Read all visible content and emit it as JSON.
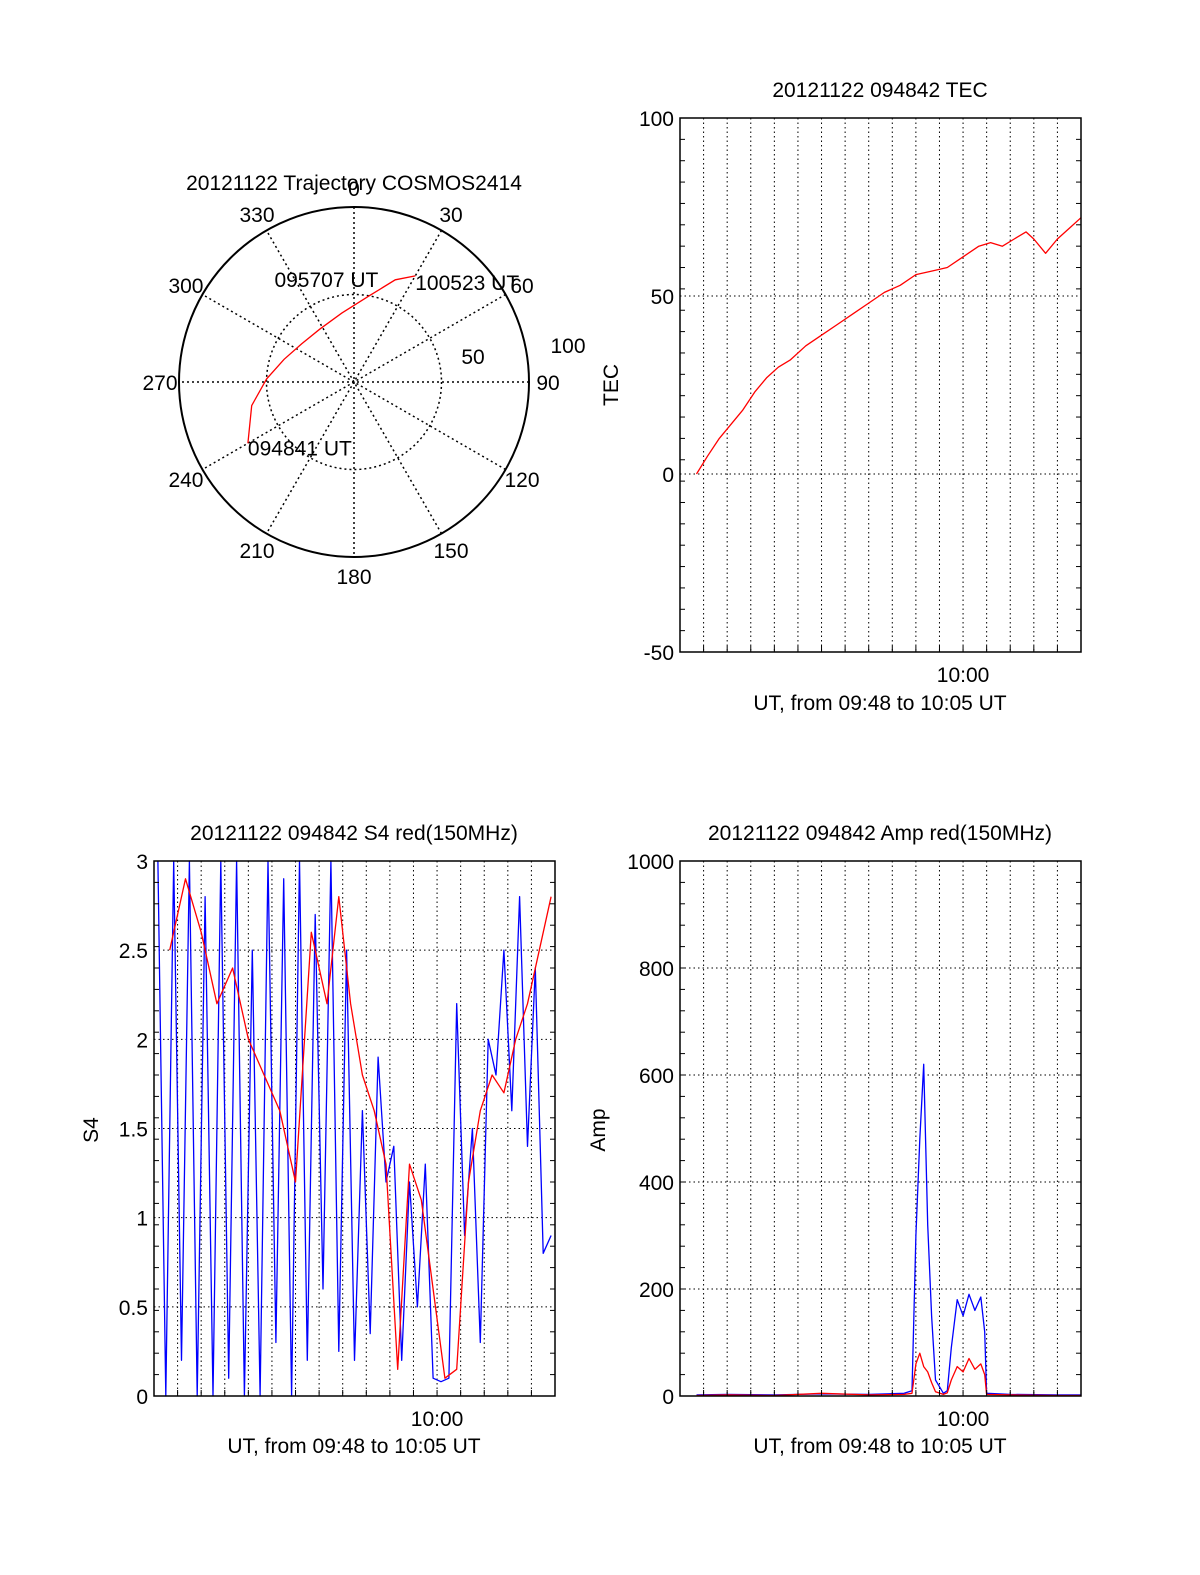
{
  "chart_data": [
    {
      "type": "polar",
      "title": "20121122 Trajectory COSMOS2414",
      "azimuth_labels": [
        "0",
        "30",
        "60",
        "90",
        "120",
        "150",
        "180",
        "210",
        "240",
        "270",
        "300",
        "330"
      ],
      "radius_labels": [
        "50",
        "100"
      ],
      "rlim": [
        0,
        100
      ],
      "grid": true,
      "series": [
        {
          "color": "#ff0000",
          "points": [
            {
              "az": 240,
              "r": 70
            },
            {
              "az": 257,
              "r": 60
            },
            {
              "az": 272,
              "r": 50
            },
            {
              "az": 288,
              "r": 42
            },
            {
              "az": 306,
              "r": 37
            },
            {
              "az": 327,
              "r": 36
            },
            {
              "az": 350,
              "r": 40
            },
            {
              "az": 10,
              "r": 50
            },
            {
              "az": 22,
              "r": 63
            },
            {
              "az": 30,
              "r": 70
            }
          ]
        }
      ],
      "annotations": [
        {
          "text": "094841 UT",
          "az": 240,
          "r": 70
        },
        {
          "text": "095707 UT",
          "az": 340,
          "r": 36
        },
        {
          "text": "100523 UT",
          "az": 30,
          "r": 70
        }
      ]
    },
    {
      "type": "line",
      "title": "20121122 094842 TEC",
      "xlabel": "UT, from 09:48 to 10:05 UT",
      "ylabel": "TEC",
      "xlim": [
        "09:48",
        "10:05"
      ],
      "ylim": [
        -50,
        100
      ],
      "x_ticks": [
        {
          "time": "10:00",
          "label": "10:00"
        }
      ],
      "y_ticks": [
        "-50",
        "0",
        "50",
        "100"
      ],
      "grid": true,
      "series": [
        {
          "color": "#ff0000",
          "x": [
            "09:48:42",
            "09:49:10",
            "09:49:40",
            "09:50:10",
            "09:50:40",
            "09:51:10",
            "09:51:40",
            "09:52:10",
            "09:52:40",
            "09:53:20",
            "09:54:00",
            "09:54:40",
            "09:55:20",
            "09:56:00",
            "09:56:40",
            "09:57:20",
            "09:58:00",
            "09:58:40",
            "09:59:20",
            "10:00:00",
            "10:00:40",
            "10:01:10",
            "10:01:40",
            "10:02:10",
            "10:02:40",
            "10:03:00",
            "10:03:30",
            "10:04:00",
            "10:04:30",
            "10:05:00"
          ],
          "y": [
            0,
            5,
            10,
            14,
            18,
            23,
            27,
            30,
            32,
            36,
            39,
            42,
            45,
            48,
            51,
            53,
            56,
            57,
            58,
            61,
            64,
            65,
            64,
            66,
            68,
            66,
            62,
            66,
            69,
            72
          ]
        }
      ]
    },
    {
      "type": "line",
      "title": "20121122 094842 S4 red(150MHz)",
      "xlabel": "UT, from 09:48 to 10:05 UT",
      "ylabel": "S4",
      "xlim": [
        "09:48",
        "10:05"
      ],
      "ylim": [
        0,
        3
      ],
      "x_ticks": [
        {
          "time": "10:00",
          "label": "10:00"
        }
      ],
      "y_ticks": [
        "0",
        "0.5",
        "1",
        "1.5",
        "2",
        "2.5",
        "3"
      ],
      "grid": true,
      "series": [
        {
          "color": "#0000ff",
          "x": [
            "09:48:10",
            "09:48:30",
            "09:48:50",
            "09:49:10",
            "09:49:30",
            "09:49:50",
            "09:50:10",
            "09:50:30",
            "09:50:50",
            "09:51:10",
            "09:51:30",
            "09:51:50",
            "09:52:10",
            "09:52:30",
            "09:52:50",
            "09:53:10",
            "09:53:30",
            "09:53:50",
            "09:54:10",
            "09:54:30",
            "09:54:50",
            "09:55:10",
            "09:55:30",
            "09:55:50",
            "09:56:10",
            "09:56:30",
            "09:56:50",
            "09:57:10",
            "09:57:30",
            "09:57:50",
            "09:58:10",
            "09:58:30",
            "09:58:50",
            "09:59:10",
            "09:59:30",
            "09:59:50",
            "10:00:10",
            "10:00:30",
            "10:00:50",
            "10:01:10",
            "10:01:30",
            "10:01:50",
            "10:02:10",
            "10:02:30",
            "10:02:50",
            "10:03:10",
            "10:03:30",
            "10:03:50",
            "10:04:10",
            "10:04:30",
            "10:04:50"
          ],
          "y": [
            3,
            0,
            3,
            0.2,
            3,
            0,
            2.8,
            0,
            3,
            0.1,
            3,
            0,
            2.5,
            0,
            3,
            0.3,
            2.9,
            0,
            3,
            0.2,
            2.7,
            0.6,
            3,
            0.25,
            2.5,
            0.2,
            1.6,
            0.35,
            1.9,
            1.2,
            1.4,
            0.2,
            1.2,
            0.5,
            1.3,
            0.1,
            0.08,
            0.1,
            2.2,
            0.9,
            1.5,
            0.3,
            2,
            1.8,
            2.5,
            1.6,
            2.8,
            1.4,
            2.4,
            0.8,
            0.9
          ]
        },
        {
          "color": "#ff0000",
          "x": [
            "09:48:40",
            "09:49:20",
            "09:50:00",
            "09:50:40",
            "09:51:20",
            "09:52:00",
            "09:52:40",
            "09:53:20",
            "09:54:00",
            "09:54:40",
            "09:55:20",
            "09:55:50",
            "09:56:20",
            "09:56:50",
            "09:57:20",
            "09:57:50",
            "09:58:20",
            "09:58:50",
            "09:59:20",
            "09:59:50",
            "10:00:20",
            "10:00:50",
            "10:01:20",
            "10:01:50",
            "10:02:20",
            "10:02:50",
            "10:03:20",
            "10:03:50",
            "10:04:20",
            "10:04:50"
          ],
          "y": [
            2.5,
            2.9,
            2.6,
            2.2,
            2.4,
            2,
            1.8,
            1.6,
            1.2,
            2.6,
            2.2,
            2.8,
            2.2,
            1.8,
            1.6,
            1.3,
            0.15,
            1.3,
            1.1,
            0.6,
            0.1,
            0.15,
            1.2,
            1.6,
            1.8,
            1.7,
            2,
            2.2,
            2.5,
            2.8
          ]
        }
      ]
    },
    {
      "type": "line",
      "title": "20121122 094842 Amp red(150MHz)",
      "xlabel": "UT, from 09:48 to 10:05 UT",
      "ylabel": "Amp",
      "xlim": [
        "09:48",
        "10:05"
      ],
      "ylim": [
        0,
        1000
      ],
      "x_ticks": [
        {
          "time": "10:00",
          "label": "10:00"
        }
      ],
      "y_ticks": [
        "0",
        "200",
        "400",
        "600",
        "800",
        "1000"
      ],
      "grid": true,
      "series": [
        {
          "color": "#0000ff",
          "x": [
            "09:48:42",
            "09:50:00",
            "09:52:00",
            "09:54:00",
            "09:56:00",
            "09:57:30",
            "09:57:50",
            "09:58:00",
            "09:58:10",
            "09:58:20",
            "09:58:30",
            "09:58:40",
            "09:58:50",
            "09:59:10",
            "09:59:20",
            "09:59:30",
            "09:59:45",
            "10:00:00",
            "10:00:15",
            "10:00:30",
            "10:00:45",
            "10:00:55",
            "10:01:00",
            "10:02:00",
            "10:04:00",
            "10:05:00"
          ],
          "y": [
            2,
            3,
            2,
            4,
            3,
            5,
            10,
            300,
            480,
            620,
            320,
            150,
            30,
            5,
            10,
            90,
            180,
            150,
            190,
            160,
            185,
            120,
            5,
            3,
            2,
            2
          ]
        },
        {
          "color": "#ff0000",
          "x": [
            "09:48:42",
            "09:50:00",
            "09:52:00",
            "09:54:00",
            "09:56:00",
            "09:57:30",
            "09:57:50",
            "09:58:00",
            "09:58:10",
            "09:58:20",
            "09:58:30",
            "09:58:40",
            "09:58:50",
            "09:59:10",
            "09:59:20",
            "09:59:30",
            "09:59:45",
            "10:00:00",
            "10:00:15",
            "10:00:30",
            "10:00:45",
            "10:00:55",
            "10:01:00",
            "10:02:00",
            "10:04:00",
            "10:05:00"
          ],
          "y": [
            1,
            2,
            1,
            5,
            2,
            3,
            5,
            60,
            80,
            55,
            45,
            25,
            8,
            3,
            6,
            30,
            55,
            45,
            70,
            50,
            60,
            40,
            3,
            2,
            1,
            1
          ]
        }
      ]
    }
  ]
}
